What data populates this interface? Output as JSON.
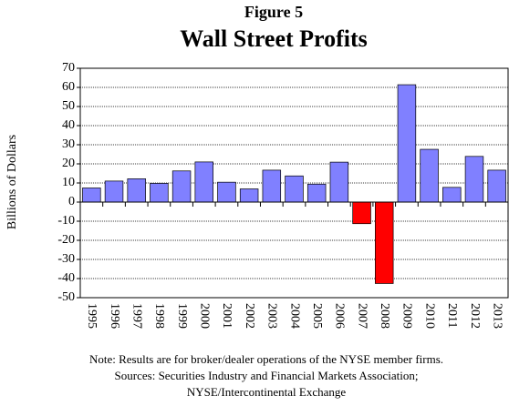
{
  "chart_data": {
    "type": "bar",
    "title": "Figure 5",
    "subtitle": "Wall Street Profits",
    "y_label": "Billions of Dollars",
    "categories": [
      "1995",
      "1996",
      "1997",
      "1998",
      "1999",
      "2000",
      "2001",
      "2002",
      "2003",
      "2004",
      "2005",
      "2006",
      "2007",
      "2008",
      "2009",
      "2010",
      "2011",
      "2012",
      "2013"
    ],
    "values": [
      7.4,
      11,
      12.2,
      9.8,
      16.3,
      21,
      10.4,
      6.9,
      16.7,
      13.7,
      9.4,
      20.9,
      -11.3,
      -42.6,
      61.4,
      27.6,
      7.7,
      23.9,
      16.7
    ],
    "color": "#8080ff",
    "negative_color": "#ff0000",
    "ylim": [
      -50,
      70
    ],
    "yticks": [
      -50,
      -40,
      -30,
      -20,
      -10,
      0,
      10,
      20,
      30,
      40,
      50,
      60,
      70
    ],
    "grid": true,
    "notes": [
      "Note: Results are for broker/dealer operations of the NYSE member firms.",
      "Sources: Securities Industry and Financial Markets Association;",
      "NYSE/Intercontinental Exchange"
    ]
  }
}
